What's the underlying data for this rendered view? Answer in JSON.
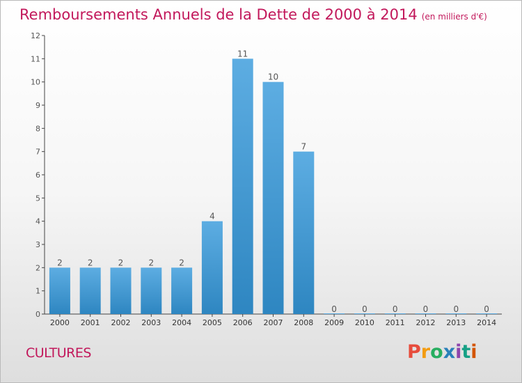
{
  "chart_data": {
    "type": "bar",
    "title": "Remboursements Annuels de la Dette de 2000 à 2014",
    "unit": "(en milliers d'€)",
    "categories": [
      "2000",
      "2001",
      "2002",
      "2003",
      "2004",
      "2005",
      "2006",
      "2007",
      "2008",
      "2009",
      "2010",
      "2011",
      "2012",
      "2013",
      "2014"
    ],
    "values": [
      2,
      2,
      2,
      2,
      2,
      4,
      11,
      10,
      7,
      0,
      0,
      0,
      0,
      0,
      0
    ],
    "data_labels": [
      "2",
      "2",
      "2",
      "2",
      "2",
      "4",
      "11",
      "10",
      "7",
      "0",
      "0",
      "0",
      "0",
      "0",
      "0"
    ],
    "yticks": [
      "0",
      "1",
      "2",
      "3",
      "4",
      "5",
      "6",
      "7",
      "8",
      "9",
      "10",
      "11",
      "12"
    ],
    "ylim": [
      0,
      12
    ],
    "xlabel": "",
    "ylabel": "",
    "grid": false,
    "bar_color_top": "#5dade2",
    "bar_color_bottom": "#2e86c1",
    "axis_color": "#444444",
    "label_color": "#555555"
  },
  "footer": {
    "commune": "CULTURES",
    "brand": "Proxiti",
    "brand_colors": [
      "#e74c3c",
      "#f39c12",
      "#27ae60",
      "#2980b9",
      "#8e44ad",
      "#16a085",
      "#d35400"
    ]
  }
}
